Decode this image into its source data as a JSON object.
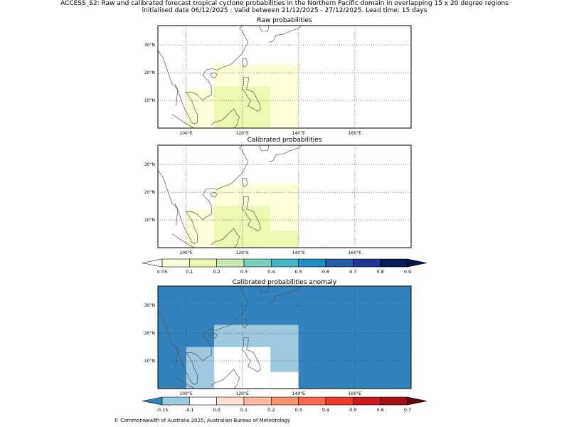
{
  "header": {
    "line1": "ACCESS_S2: Raw and calibrated forecast tropical cyclone probabilities in the Northern Pacific domain in overlapping 15 x 20 degree regions",
    "line2": "initialised date 06/12/2025 :  Valid between 21/12/2025 - 27/12/2025. Lead time: 15 days"
  },
  "panels": [
    {
      "title": "Raw probabilities"
    },
    {
      "title": "Calibrated probabilities"
    },
    {
      "title": "Calibrated probabilities anomaly"
    }
  ],
  "axes": {
    "lat_labels": [
      "30°N",
      "20°N",
      "10°N"
    ],
    "lon_labels": [
      "100°E",
      "120°E",
      "140°E",
      "160°E"
    ]
  },
  "colorbars": {
    "probability": {
      "ticks": [
        "0.05",
        "0.1",
        "0.2",
        "0.3",
        "0.4",
        "0.5",
        "0.6",
        "0.7",
        "0.8",
        "0.9"
      ],
      "colors": [
        "#ffffff",
        "#ffffd9",
        "#edf8b1",
        "#c7e9b4",
        "#7fcdbb",
        "#41b6c4",
        "#1d91c0",
        "#225ea8",
        "#253494",
        "#081d58",
        "#061544"
      ]
    },
    "anomaly": {
      "ticks": [
        "-0.15",
        "-0.1",
        "0.0",
        "0.1",
        "0.2",
        "0.3",
        "0.4",
        "0.5",
        "0.6",
        "0.7"
      ],
      "colors": [
        "#3182bd",
        "#9ecae1",
        "#ffffff",
        "#fee0d2",
        "#fcbba1",
        "#fc9272",
        "#fb6a4a",
        "#ef3b2c",
        "#cb181d",
        "#a50f15",
        "#67000d"
      ]
    }
  },
  "chart_data": {
    "type": "heatmap",
    "lon_range": [
      90,
      180
    ],
    "lat_range": [
      0,
      37
    ],
    "raw": [
      {
        "lon": [
          110,
          140
        ],
        "lat": [
          0,
          23
        ],
        "color": "#ffffd9"
      },
      {
        "lon": [
          100,
          110
        ],
        "lat": [
          0,
          14
        ],
        "color": "#ffffd9"
      },
      {
        "lon": [
          110,
          130
        ],
        "lat": [
          0,
          15
        ],
        "color": "#edf8b1"
      }
    ],
    "calibrated": [
      {
        "lon": [
          110,
          140
        ],
        "lat": [
          0,
          23
        ],
        "color": "#ffffd9"
      },
      {
        "lon": [
          100,
          110
        ],
        "lat": [
          0,
          14
        ],
        "color": "#ffffd9"
      },
      {
        "lon": [
          110,
          130
        ],
        "lat": [
          0,
          15
        ],
        "color": "#edf8b1"
      },
      {
        "lon": [
          130,
          140
        ],
        "lat": [
          0,
          6
        ],
        "color": "#edf8b1"
      }
    ],
    "anomaly": [
      {
        "lon": [
          90,
          180
        ],
        "lat": [
          0,
          37
        ],
        "color": "#3182bd"
      },
      {
        "lon": [
          110,
          140
        ],
        "lat": [
          6,
          23
        ],
        "color": "#9ecae1"
      },
      {
        "lon": [
          100,
          110
        ],
        "lat": [
          0,
          15
        ],
        "color": "#9ecae1"
      },
      {
        "lon": [
          110,
          130
        ],
        "lat": [
          0,
          15
        ],
        "color": "#ffffff"
      },
      {
        "lon": [
          130,
          140
        ],
        "lat": [
          0,
          6
        ],
        "color": "#ffffff"
      }
    ]
  },
  "footer": "© Commonwealth of Australia 2025, Australian Bureau of Meteorology"
}
